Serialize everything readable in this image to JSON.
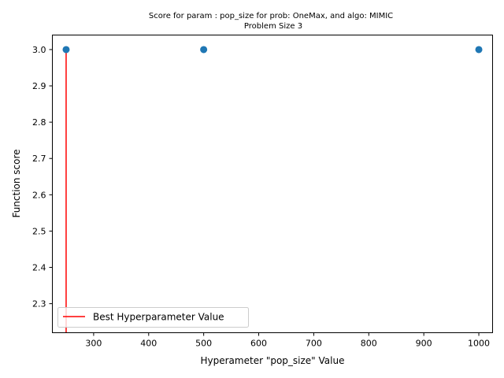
{
  "chart_data": {
    "type": "scatter",
    "title": "Score for param : pop_size for prob: OneMax, and algo: MIMIC",
    "subtitle": "Problem Size 3",
    "xlabel": "Hyperameter \"pop_size\" Value",
    "ylabel": "Function score",
    "xlim": [
      225,
      1025
    ],
    "ylim": [
      2.22,
      3.04
    ],
    "xticks": [
      300,
      400,
      500,
      600,
      700,
      800,
      900,
      1000
    ],
    "yticks": [
      2.3,
      2.4,
      2.5,
      2.6,
      2.7,
      2.8,
      2.9,
      3.0
    ],
    "points": [
      {
        "x": 250,
        "y": 3.0
      },
      {
        "x": 500,
        "y": 3.0
      },
      {
        "x": 1000,
        "y": 3.0
      }
    ],
    "best_line": {
      "x": 250,
      "y_from": 2.22,
      "y_to": 3.0
    },
    "legend": {
      "label": "Best Hyperparameter Value",
      "placement": "lower-left"
    },
    "grid": false,
    "colors": {
      "points": "#1f77b4",
      "best_line": "#ff0000",
      "axes": "#000000"
    }
  }
}
